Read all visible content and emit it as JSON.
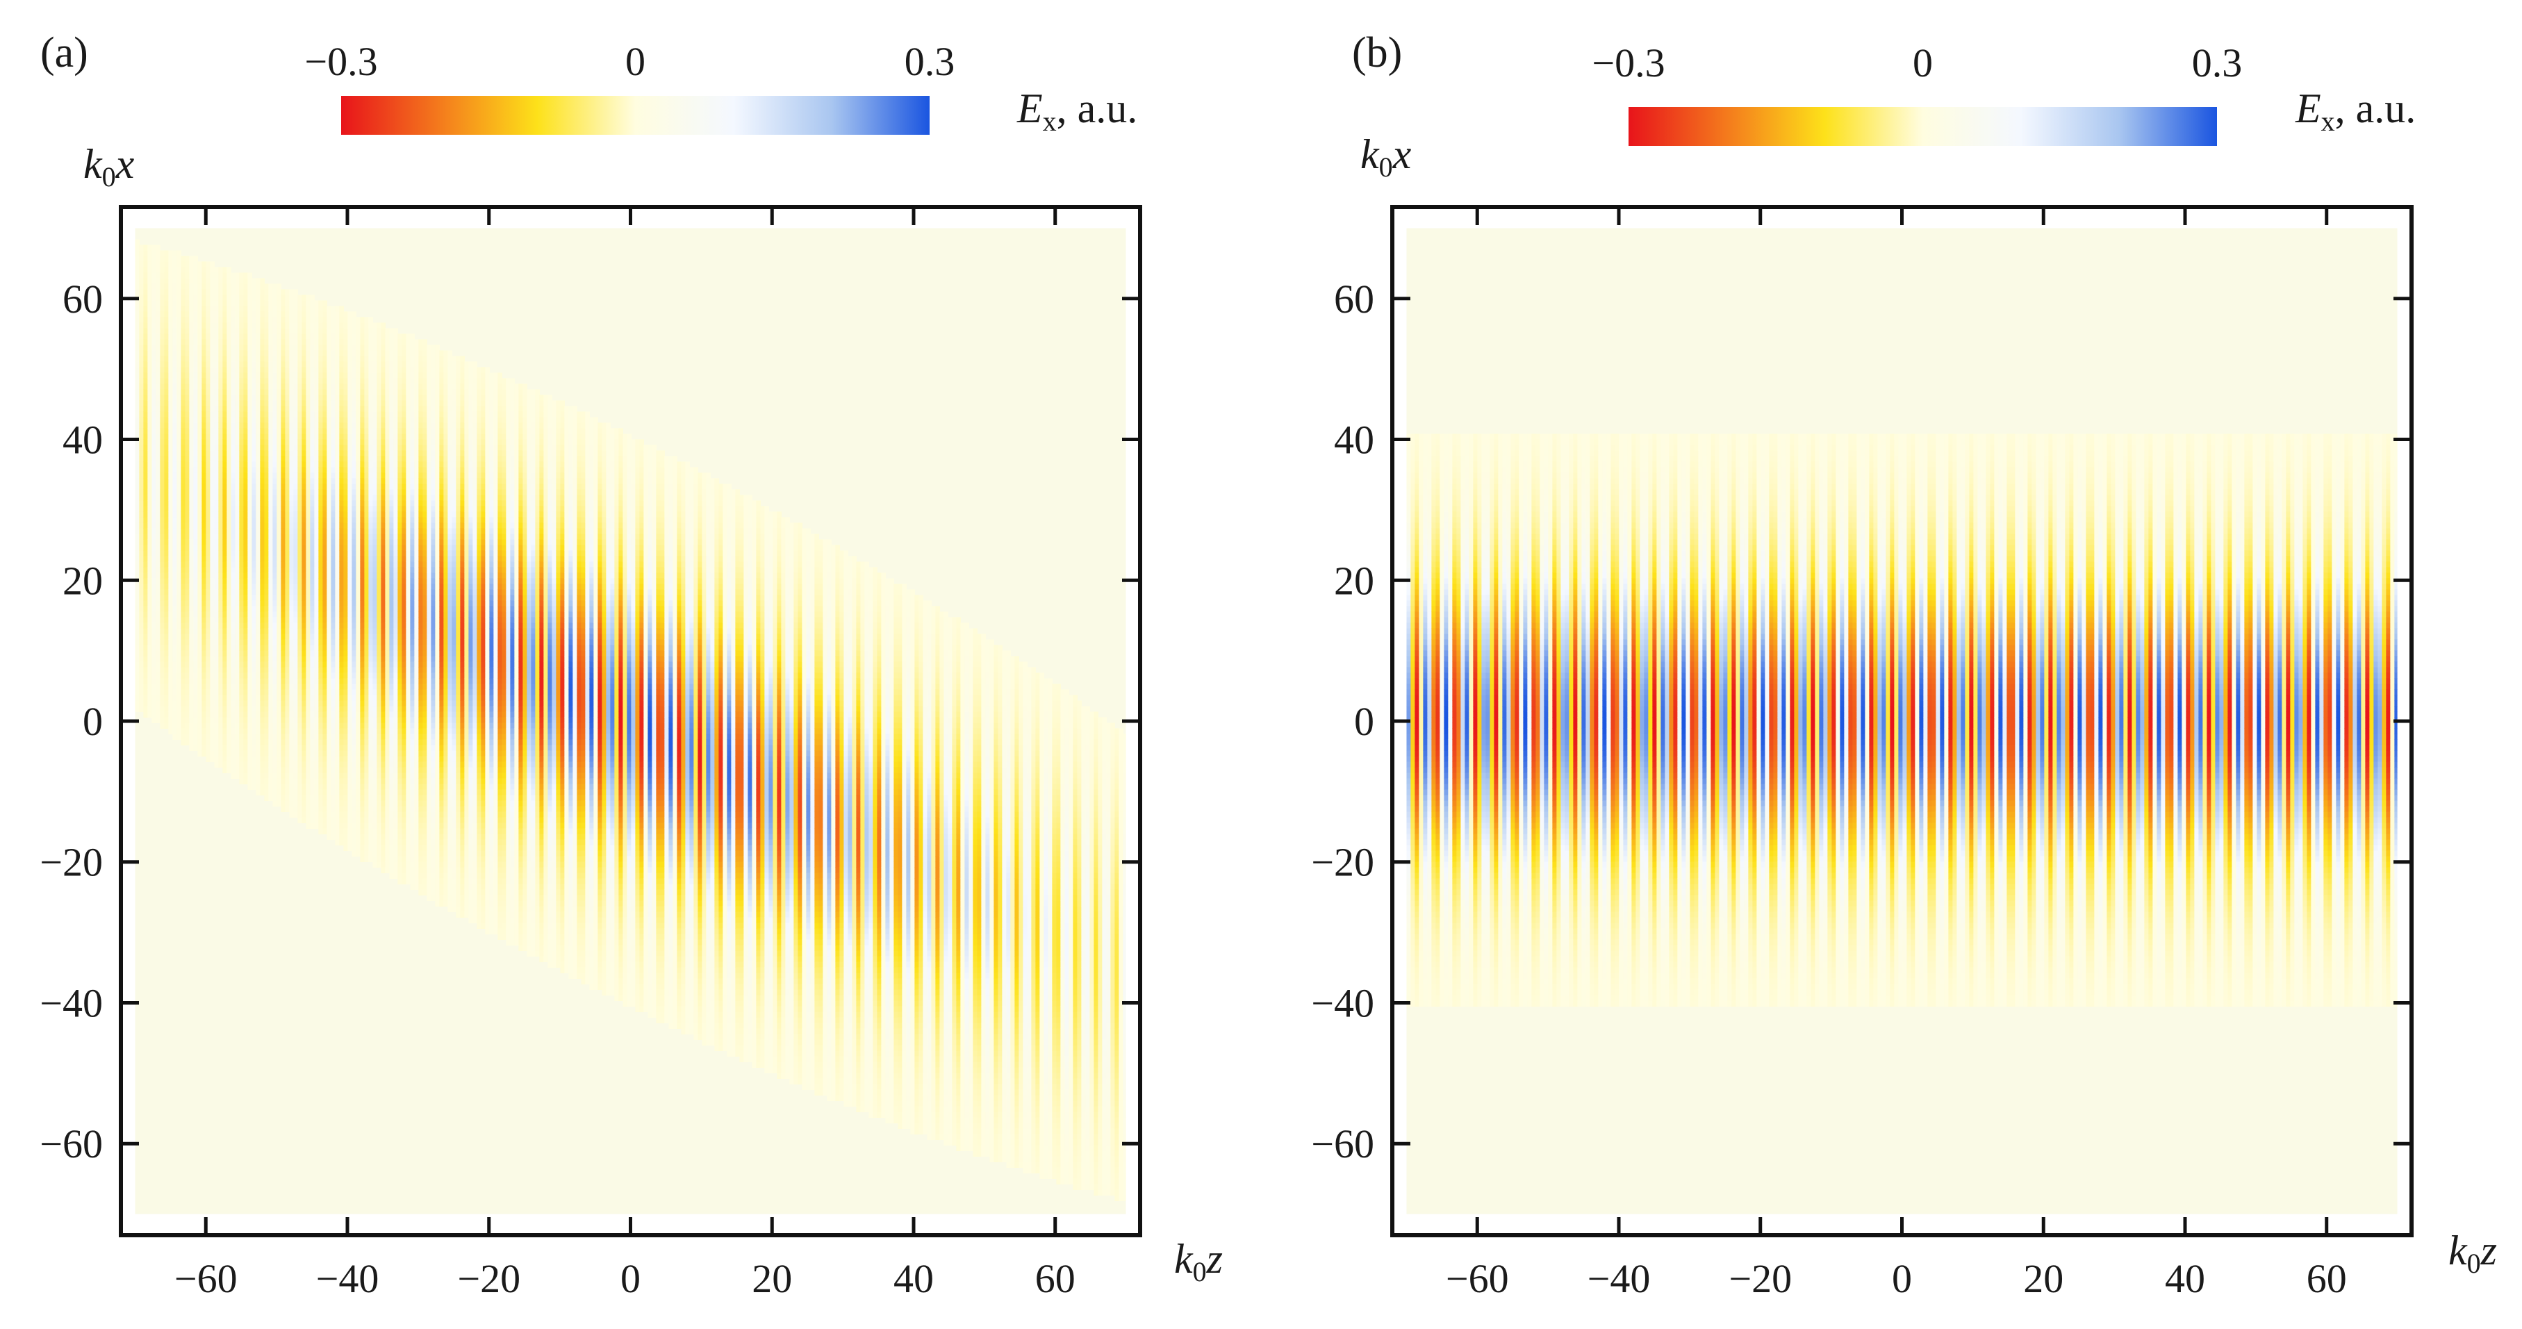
{
  "chart_data": [
    {
      "type": "heatmap",
      "panel_label": "(a)",
      "description_field": "Ex",
      "xlabel": {
        "base": "k",
        "sub": "0",
        "var": "z"
      },
      "ylabel": {
        "base": "k",
        "sub": "0",
        "var": "x"
      },
      "xlim": [
        -72,
        72
      ],
      "ylim": [
        -73,
        73
      ],
      "data_extent": {
        "z": [
          -70,
          70
        ],
        "x": [
          -70,
          70
        ]
      },
      "xticks": [
        "−60",
        "−40",
        "−20",
        "0",
        "20",
        "40",
        "60"
      ],
      "xtick_values": [
        -60,
        -40,
        -20,
        0,
        20,
        40,
        60
      ],
      "yticks": [
        "60",
        "40",
        "20",
        "0",
        "−20",
        "−40",
        "−60"
      ],
      "ytick_values": [
        60,
        40,
        20,
        0,
        -20,
        -40,
        -60
      ],
      "field": {
        "amplitude": 0.3,
        "fringe_period": 2.8,
        "beam_waist": 14,
        "envelope_length": 42,
        "tilt_slope": -0.5
      },
      "colorbar": {
        "ticks": [
          "−0.3",
          "0",
          "0.3"
        ],
        "tick_values": [
          -0.3,
          0,
          0.3
        ],
        "label": {
          "base": "E",
          "sub": "x",
          "suffix": ", a.u."
        },
        "colors": [
          "#e8141b",
          "#f47a1c",
          "#fde11a",
          "#fffde0",
          "#f4f8ff",
          "#a9c6f0",
          "#1a55e0"
        ]
      }
    },
    {
      "type": "heatmap",
      "panel_label": "(b)",
      "description_field": "Ex",
      "xlabel": {
        "base": "k",
        "sub": "0",
        "var": "z"
      },
      "ylabel": {
        "base": "k",
        "sub": "0",
        "var": "x"
      },
      "xlim": [
        -72,
        72
      ],
      "ylim": [
        -73,
        73
      ],
      "data_extent": {
        "z": [
          -70,
          70
        ],
        "x": [
          -70,
          70
        ]
      },
      "xticks": [
        "−60",
        "−40",
        "−20",
        "0",
        "20",
        "40",
        "60"
      ],
      "xtick_values": [
        -60,
        -40,
        -20,
        0,
        20,
        40,
        60
      ],
      "yticks": [
        "60",
        "40",
        "20",
        "0",
        "−20",
        "−40",
        "−60"
      ],
      "ytick_values": [
        60,
        40,
        20,
        0,
        -20,
        -40,
        -60
      ],
      "field": {
        "amplitude": 0.3,
        "fringe_period": 2.8,
        "beam_waist": 14,
        "envelope_length": 0,
        "tilt_slope": 0
      },
      "colorbar": {
        "ticks": [
          "−0.3",
          "0",
          "0.3"
        ],
        "tick_values": [
          -0.3,
          0,
          0.3
        ],
        "label": {
          "base": "E",
          "sub": "x",
          "suffix": ", a.u."
        },
        "colors": [
          "#e8141b",
          "#f47a1c",
          "#fde11a",
          "#fffde0",
          "#f4f8ff",
          "#a9c6f0",
          "#1a55e0"
        ]
      }
    }
  ]
}
